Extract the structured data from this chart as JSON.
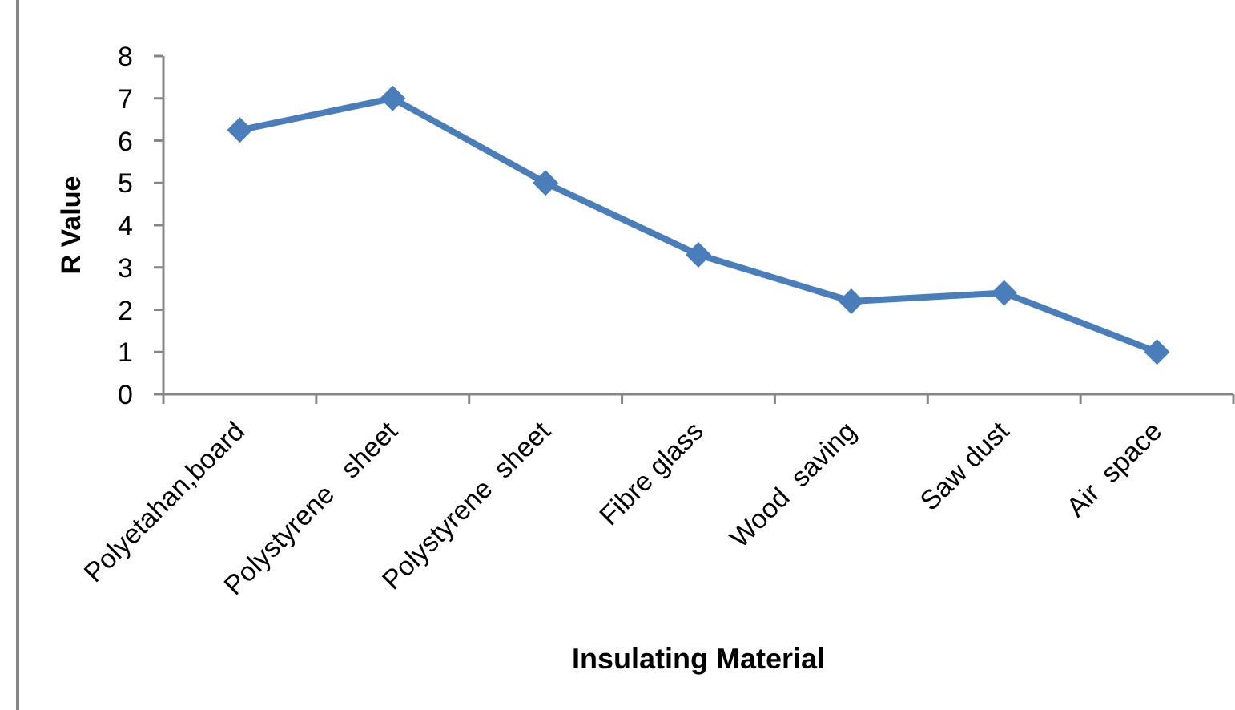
{
  "chart_data": {
    "type": "line",
    "xlabel": "Insulating Material",
    "ylabel": "R Value",
    "categories": [
      "Polyetahan,board",
      "Polystyrene   sheet",
      "Polystyrene  sheet",
      "Fibre glass",
      "Wood  saving",
      "Saw dust",
      "Air  space"
    ],
    "values": [
      6.25,
      7,
      5,
      3.3,
      2.2,
      2.4,
      1
    ],
    "color": "#4a7ebb",
    "ylim": [
      0,
      8
    ],
    "yticks": [
      0,
      1,
      2,
      3,
      4,
      5,
      6,
      7,
      8
    ],
    "grid": false,
    "legend": false,
    "marker": "diamond",
    "line_style": "solid"
  }
}
